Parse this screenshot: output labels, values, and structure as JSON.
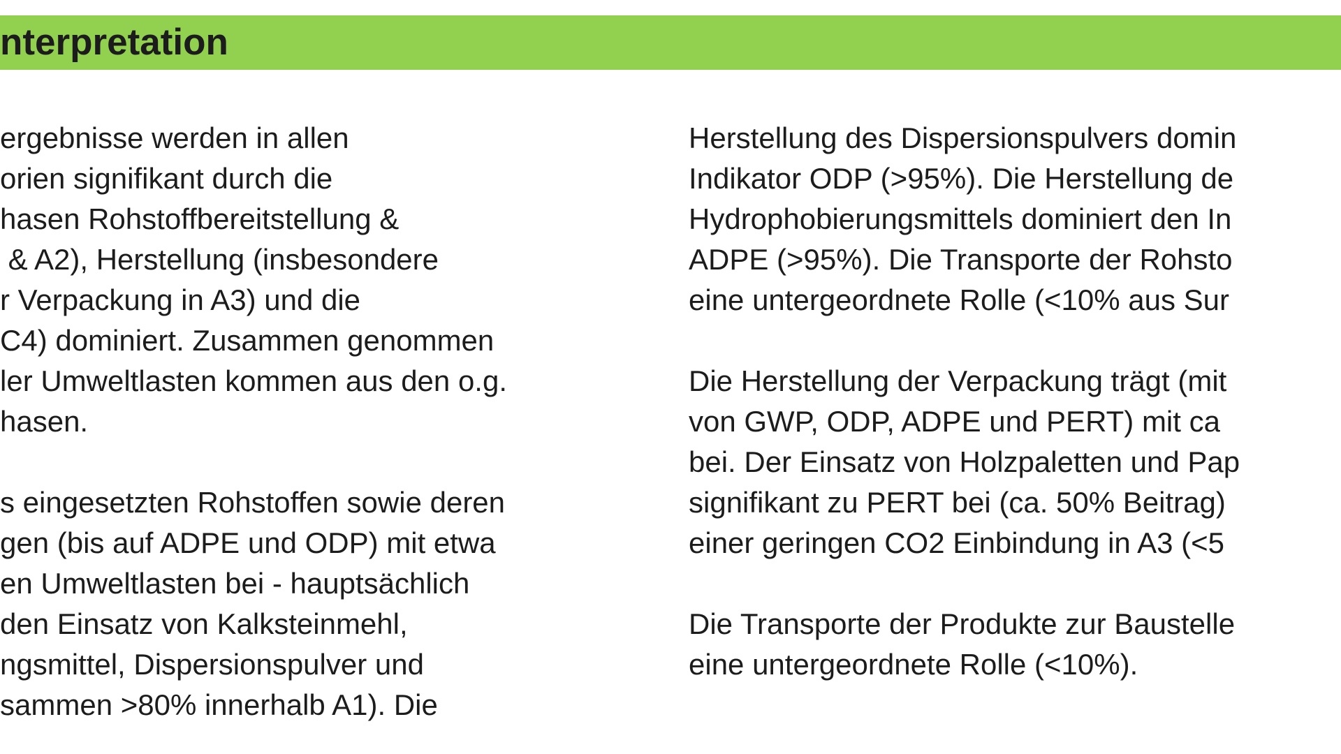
{
  "heading": "nterpretation",
  "columns": [
    {
      "paragraphs": [
        [
          "ergebnisse werden in allen",
          "orien signifikant durch die",
          "hasen Rohstoffbereitstellung &",
          " & A2), Herstellung (insbesondere",
          "r Verpackung in A3) und die",
          "C4) dominiert. Zusammen genommen",
          "ler Umweltlasten kommen aus den o.g.",
          "hasen."
        ],
        [
          "s eingesetzten Rohstoffen sowie deren",
          "gen (bis auf ADPE und ODP) mit etwa",
          "en Umweltlasten bei - hauptsächlich",
          "den Einsatz von Kalksteinmehl,",
          "ngsmittel, Dispersionspulver und",
          "sammen >80% innerhalb A1). Die"
        ]
      ]
    },
    {
      "paragraphs": [
        [
          "Herstellung des Dispersionspulvers domin",
          "Indikator ODP (>95%). Die Herstellung de",
          "Hydrophobierungsmittels dominiert den In",
          "ADPE (>95%). Die Transporte der Rohsto",
          "eine untergeordnete Rolle (<10% aus Sur"
        ],
        [
          "Die Herstellung der Verpackung trägt (mit",
          "von GWP, ODP, ADPE und PERT) mit ca",
          "bei. Der Einsatz von Holzpaletten und Pap",
          "signifikant zu PERT bei (ca. 50% Beitrag)",
          "einer geringen CO2 Einbindung in A3 (<5"
        ],
        [
          "Die Transporte der Produkte zur Baustelle",
          "eine untergeordnete Rolle (<10%)."
        ]
      ]
    }
  ]
}
